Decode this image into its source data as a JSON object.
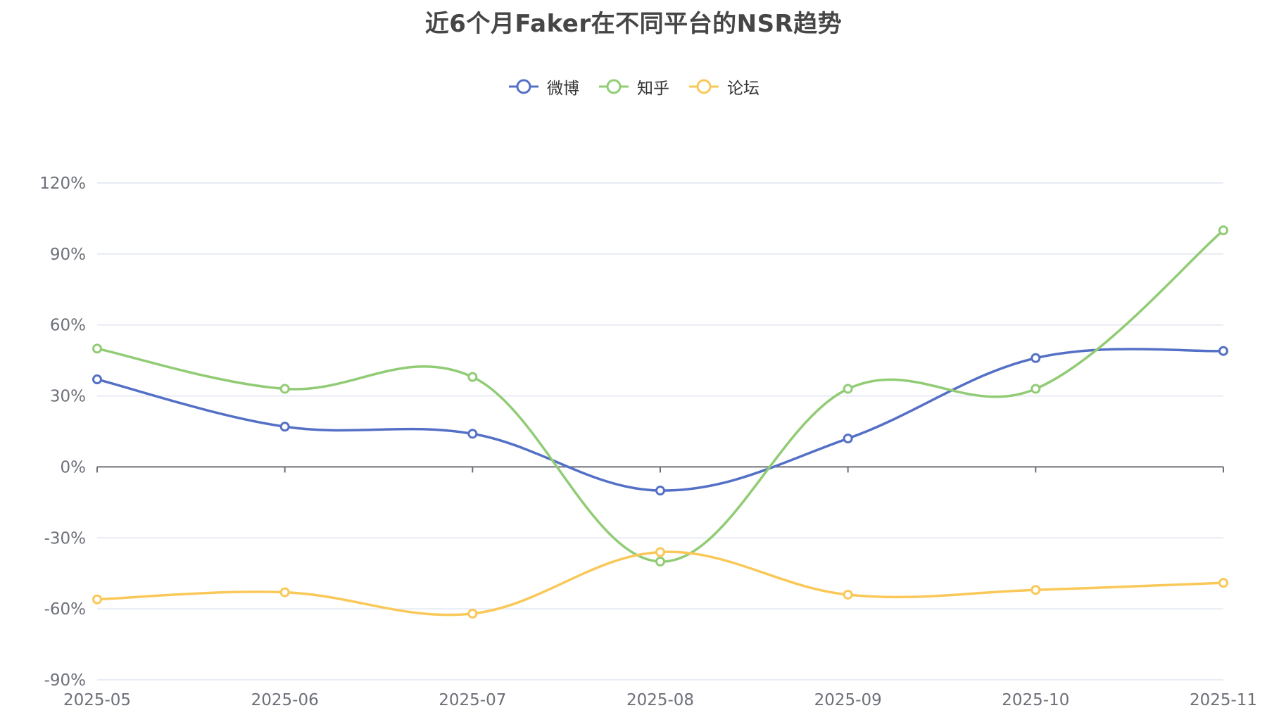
{
  "chart_data": {
    "type": "line",
    "title": "近6个月Faker在不同平台的NSR趋势",
    "categories": [
      "2025-05",
      "2025-06",
      "2025-07",
      "2025-08",
      "2025-09",
      "2025-10",
      "2025-11"
    ],
    "y_ticks": [
      "120%",
      "90%",
      "60%",
      "30%",
      "0%",
      "-30%",
      "-60%",
      "-90%"
    ],
    "ylim": [
      -90,
      120
    ],
    "y_unit": "%",
    "smooth": true,
    "grid": "horizontal",
    "legend_position": "top-center",
    "series": [
      {
        "name": "微博",
        "color": "#5470c6",
        "values": [
          37,
          17,
          14,
          -10,
          12,
          46,
          49
        ]
      },
      {
        "name": "知乎",
        "color": "#91cc75",
        "values": [
          50,
          33,
          38,
          -40,
          33,
          33,
          100
        ]
      },
      {
        "name": "论坛",
        "color": "#fac858",
        "values": [
          -56,
          -53,
          -62,
          -36,
          -54,
          -52,
          -49
        ]
      }
    ]
  }
}
